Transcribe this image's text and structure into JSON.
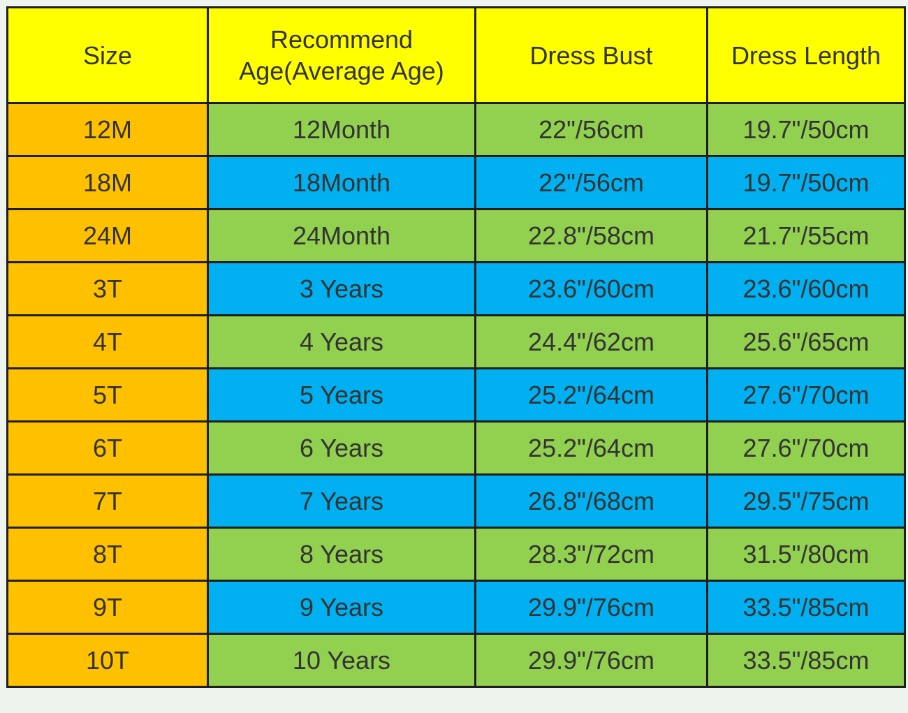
{
  "table": {
    "header": [
      "Size",
      "Recommend Age(Average Age)",
      "Dress Bust",
      "Dress Length"
    ],
    "rows": [
      [
        "12M",
        "12Month",
        "22\"/56cm",
        "19.7\"/50cm"
      ],
      [
        "18M",
        "18Month",
        "22\"/56cm",
        "19.7\"/50cm"
      ],
      [
        "24M",
        "24Month",
        "22.8\"/58cm",
        "21.7\"/55cm"
      ],
      [
        "3T",
        "3 Years",
        "23.6\"/60cm",
        "23.6\"/60cm"
      ],
      [
        "4T",
        "4 Years",
        "24.4\"/62cm",
        "25.6\"/65cm"
      ],
      [
        "5T",
        "5 Years",
        "25.2\"/64cm",
        "27.6\"/70cm"
      ],
      [
        "6T",
        "6 Years",
        "25.2\"/64cm",
        "27.6\"/70cm"
      ],
      [
        "7T",
        "7 Years",
        "26.8\"/68cm",
        "29.5\"/75cm"
      ],
      [
        "8T",
        "8 Years",
        "28.3\"/72cm",
        "31.5\"/80cm"
      ],
      [
        "9T",
        "9 Years",
        "29.9\"/76cm",
        "33.5\"/85cm"
      ],
      [
        "10T",
        "10 Years",
        "29.9\"/76cm",
        "33.5\"/85cm"
      ]
    ]
  }
}
